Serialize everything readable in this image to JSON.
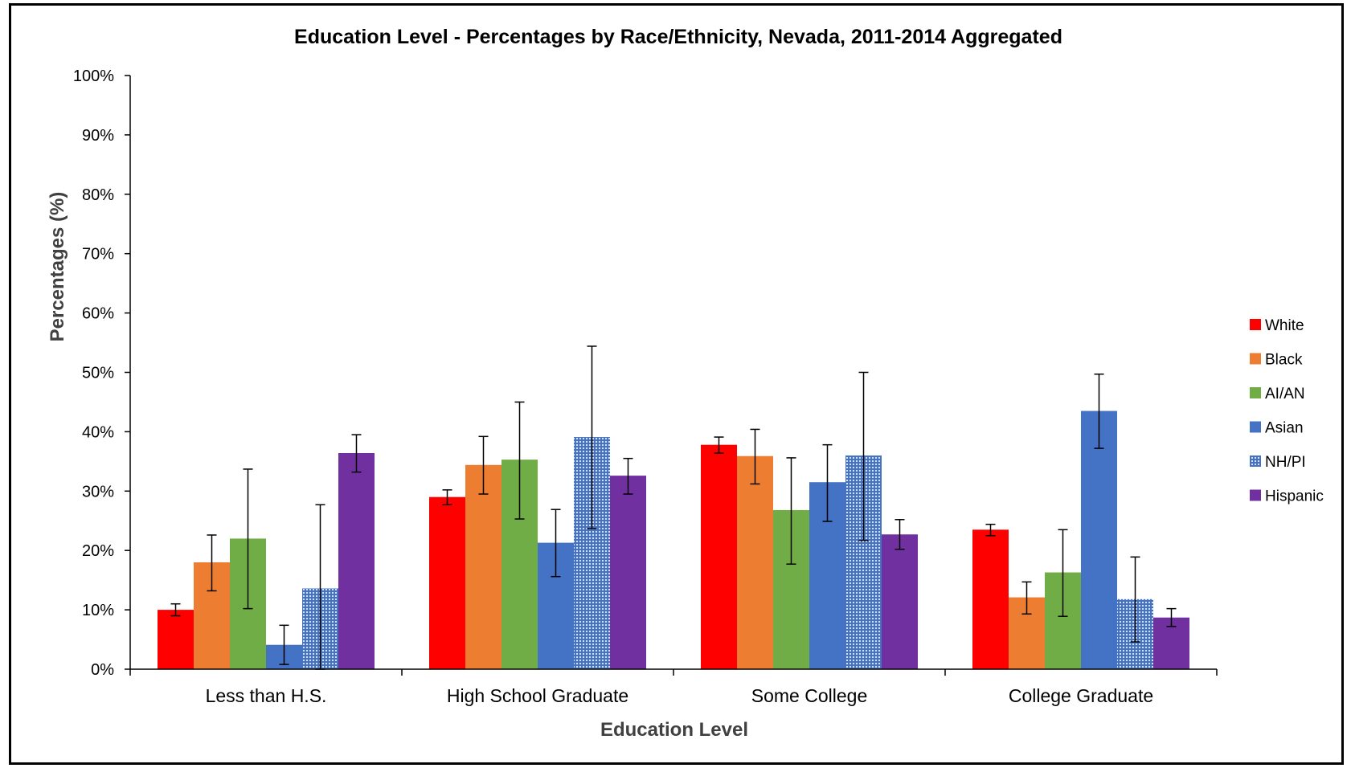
{
  "chart_data": {
    "type": "bar",
    "title": "Education Level - Percentages by Race/Ethnicity, Nevada, 2011-2014 Aggregated",
    "xlabel": "Education Level",
    "ylabel": "Percentages (%)",
    "ylim": [
      0,
      100
    ],
    "yticks": [
      "0%",
      "10%",
      "20%",
      "30%",
      "40%",
      "50%",
      "60%",
      "70%",
      "80%",
      "90%",
      "100%"
    ],
    "grid": false,
    "legend_position": "right",
    "categories": [
      "Less than H.S.",
      "High School Graduate",
      "Some College",
      "College Graduate"
    ],
    "series": [
      {
        "name": "White",
        "color": "#ff0000",
        "pattern": "solid",
        "values": [
          10.0,
          29.0,
          37.8,
          23.5
        ],
        "error_low": [
          9.0,
          27.7,
          36.4,
          22.5
        ],
        "error_high": [
          11.0,
          30.2,
          39.1,
          24.4
        ]
      },
      {
        "name": "Black",
        "color": "#ed7d31",
        "pattern": "solid",
        "values": [
          18.0,
          34.4,
          35.9,
          12.1
        ],
        "error_low": [
          13.2,
          29.5,
          31.2,
          9.3
        ],
        "error_high": [
          22.6,
          39.2,
          40.4,
          14.7
        ]
      },
      {
        "name": "AI/AN",
        "color": "#70ad47",
        "pattern": "solid",
        "values": [
          22.0,
          35.3,
          26.8,
          16.3
        ],
        "error_low": [
          10.2,
          25.3,
          17.7,
          8.9
        ],
        "error_high": [
          33.7,
          45.0,
          35.6,
          23.5
        ]
      },
      {
        "name": "Asian",
        "color": "#4472c4",
        "pattern": "solid",
        "values": [
          4.1,
          21.3,
          31.5,
          43.5
        ],
        "error_low": [
          0.8,
          15.6,
          24.9,
          37.2
        ],
        "error_high": [
          7.4,
          26.9,
          37.8,
          49.7
        ]
      },
      {
        "name": "NH/PI",
        "color": "#4472c4",
        "pattern": "dotted",
        "values": [
          13.6,
          39.1,
          36.0,
          11.8
        ],
        "error_low": [
          0.0,
          23.7,
          21.7,
          4.6
        ],
        "error_high": [
          27.7,
          54.4,
          50.0,
          18.9
        ]
      },
      {
        "name": "Hispanic",
        "color": "#7030a0",
        "pattern": "solid",
        "values": [
          36.4,
          32.6,
          22.7,
          8.7
        ],
        "error_low": [
          33.2,
          29.5,
          20.2,
          7.2
        ],
        "error_high": [
          39.5,
          35.5,
          25.2,
          10.2
        ]
      }
    ]
  }
}
